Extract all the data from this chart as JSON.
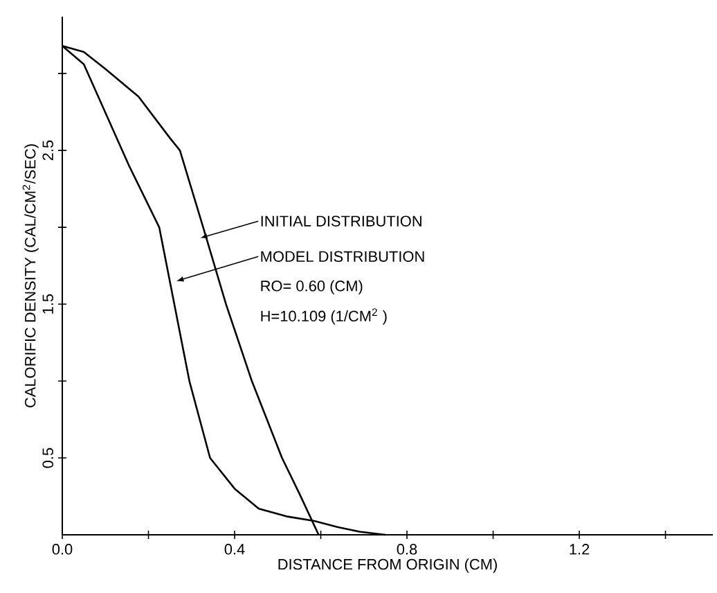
{
  "chart_data": {
    "type": "line",
    "xlabel": "DISTANCE FROM ORIGIN (CM)",
    "ylabel": "CALORIFIC DENSITY (CAL/CM$^{2}$/SEC)",
    "xlim": [
      0,
      1.51
    ],
    "ylim": [
      0,
      3.37
    ],
    "xticks": [
      {
        "value": 0,
        "label": "0.0"
      },
      {
        "value": 0.2,
        "label": null
      },
      {
        "value": 0.4,
        "label": "0.4"
      },
      {
        "value": 0.6,
        "label": null
      },
      {
        "value": 0.8,
        "label": "0.8"
      },
      {
        "value": 1.0,
        "label": null
      },
      {
        "value": 1.2,
        "label": "1.2"
      },
      {
        "value": 1.4,
        "label": null
      }
    ],
    "yticks": [
      0.5,
      {
        "value": 1.0,
        "label": null
      },
      1.5,
      {
        "value": 2.0,
        "label": null
      },
      2.5,
      {
        "value": 3.0,
        "label": null
      }
    ],
    "marker": "none",
    "line_style": "solid",
    "series": [
      {
        "color": "#000000",
        "x": [
          0,
          0.05,
          0.1,
          0.177,
          0.25,
          0.273,
          0.327,
          0.38,
          0.44,
          0.51,
          0.55,
          0.595
        ],
        "values": [
          3.18,
          3.14,
          3.03,
          2.85,
          2.58,
          2.5,
          2.0,
          1.5,
          1.0,
          0.5,
          0.27,
          0
        ]
      },
      {
        "color": "#000000",
        "x": [
          0,
          0.05,
          0.12,
          0.155,
          0.225,
          0.26,
          0.295,
          0.343,
          0.4,
          0.456,
          0.52,
          0.585,
          0.64,
          0.69,
          0.75
        ],
        "values": [
          3.18,
          3.06,
          2.62,
          2.4,
          2.0,
          1.5,
          1.0,
          0.5,
          0.3,
          0.17,
          0.12,
          0.09,
          0.05,
          0.02,
          0
        ]
      }
    ],
    "annotations": [
      {
        "text": "INITIAL DISTRIBUTION",
        "x": 0.32,
        "y": 1.93
      },
      {
        "text": "MODEL DISTRIBUTION",
        "x": 0.265,
        "y": 1.65
      },
      "RO= 0.60 (CM)",
      "H=10.109 (1/CM$^{2}$ )"
    ]
  }
}
